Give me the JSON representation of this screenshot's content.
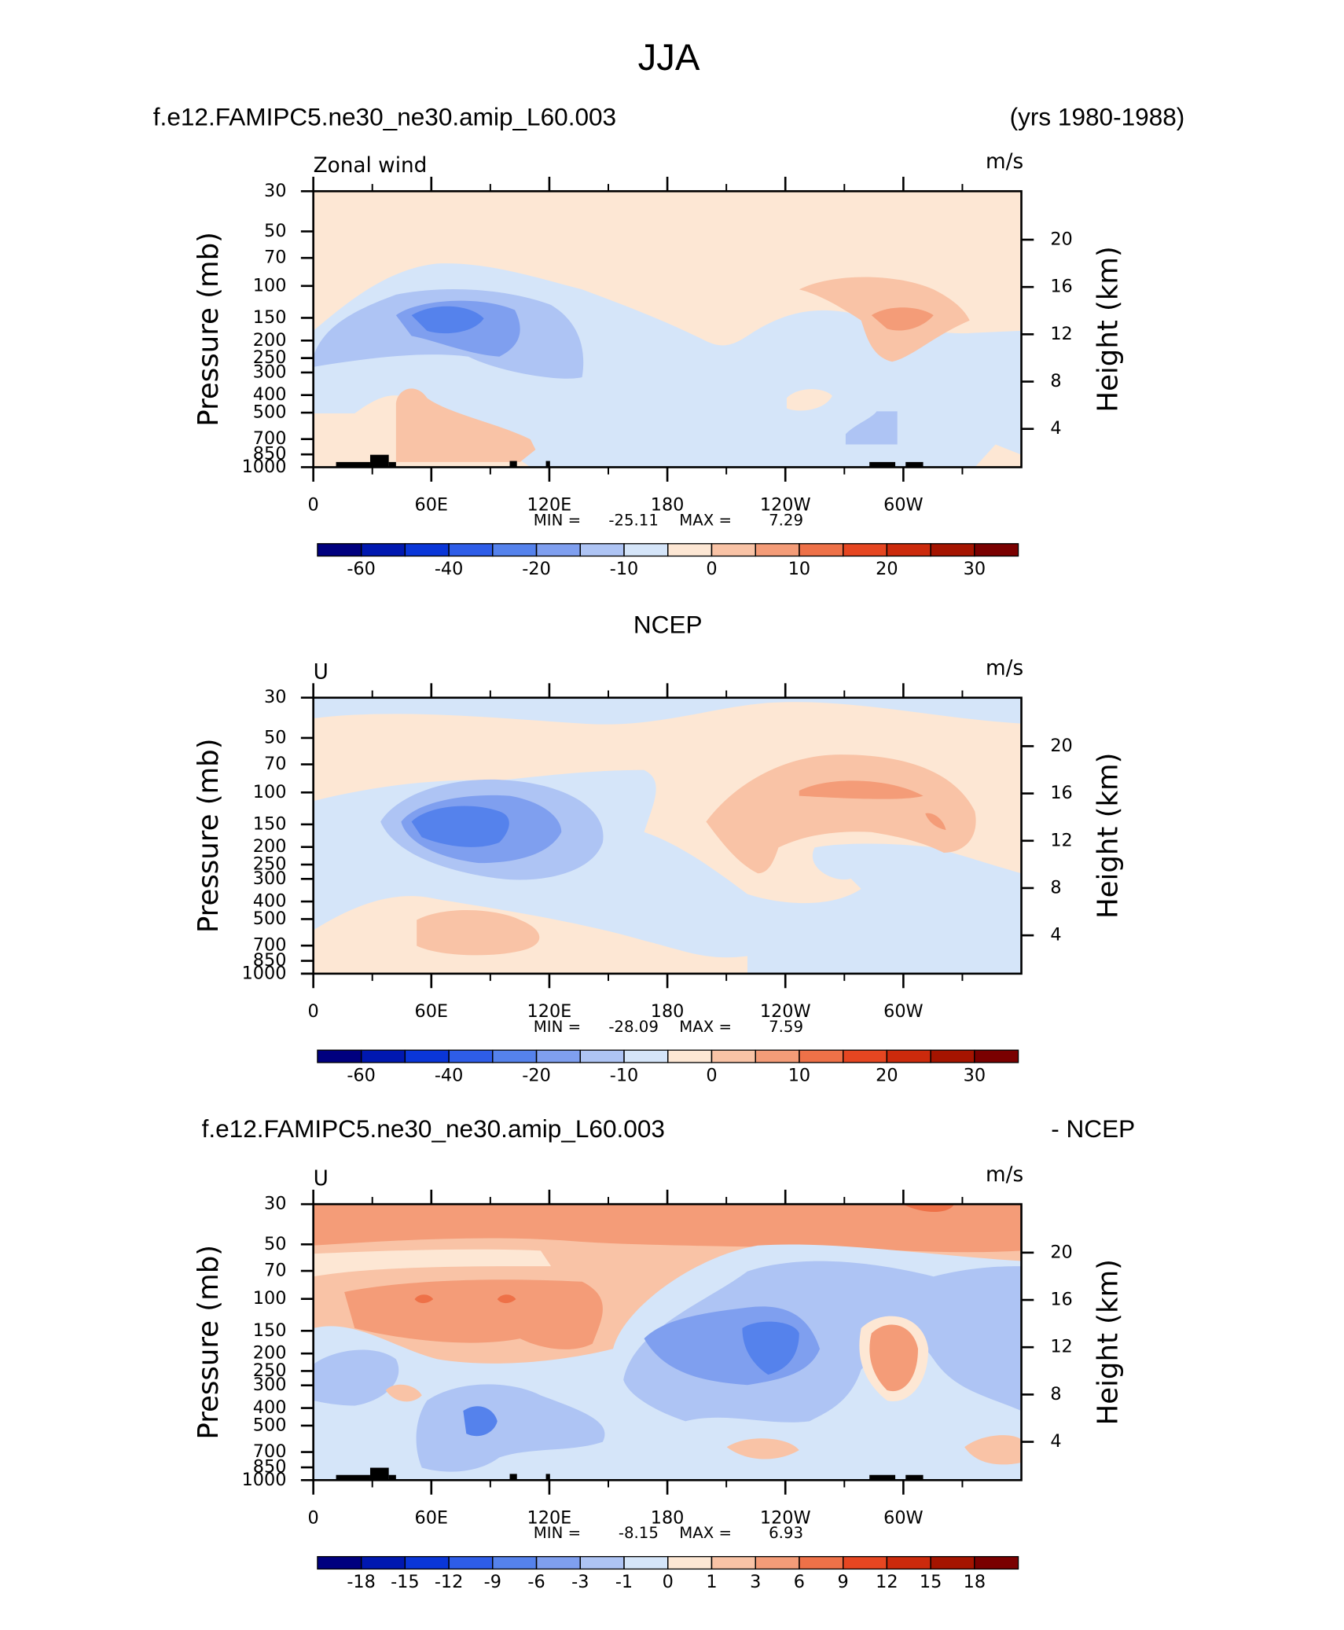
{
  "title": "JJA",
  "chart_data": [
    {
      "type": "contour",
      "left_title": "f.e12.FAMIPC5.ne30_ne30.amip_L60.003",
      "right_title": "(yrs 1980-1988)",
      "variable": "Zonal wind",
      "units": "m/s",
      "ylabel": "Pressure (mb)",
      "y2label": "Height (km)",
      "xlim": [
        0,
        360
      ],
      "xticks": [
        0,
        {
          "value": 60,
          "label": "60E"
        },
        {
          "value": 120,
          "label": "120E"
        },
        180,
        {
          "value": 240,
          "label": "120W"
        },
        {
          "value": 300,
          "label": "60W"
        }
      ],
      "ylim": [
        1000,
        30
      ],
      "log_y": true,
      "yticks": [
        30,
        50,
        70,
        100,
        150,
        200,
        250,
        300,
        400,
        500,
        700,
        850,
        1000
      ],
      "y2lim": [
        0.76,
        24.1
      ],
      "y2ticks": [
        4,
        8,
        12,
        16,
        20
      ],
      "min_label": "MIN =",
      "min": -25.11,
      "max_label": "MAX =",
      "max": 7.29,
      "colorbar": {
        "levels": [
          -60,
          -50,
          -40,
          -30,
          -20,
          -15,
          -10,
          -5,
          0,
          5,
          10,
          15,
          20,
          25,
          30
        ],
        "ticks": [
          -60,
          -40,
          -20,
          -10,
          0,
          10,
          20,
          30
        ],
        "colors": [
          "#00007f",
          "#0018b0",
          "#0a36d8",
          "#2e5de8",
          "#5582ec",
          "#7f9fef",
          "#aec4f4",
          "#d5e5f9",
          "#fde7d4",
          "#f9c3a6",
          "#f49c78",
          "#ee7148",
          "#e64621",
          "#cc2a0c",
          "#a51400",
          "#7a0000"
        ]
      }
    },
    {
      "type": "contour",
      "center_title": "NCEP",
      "variable": "U",
      "units": "m/s",
      "ylabel": "Pressure (mb)",
      "y2label": "Height (km)",
      "xlim": [
        0,
        360
      ],
      "xticks": [
        0,
        {
          "value": 60,
          "label": "60E"
        },
        {
          "value": 120,
          "label": "120E"
        },
        180,
        {
          "value": 240,
          "label": "120W"
        },
        {
          "value": 300,
          "label": "60W"
        }
      ],
      "ylim": [
        1000,
        30
      ],
      "log_y": true,
      "yticks": [
        30,
        50,
        70,
        100,
        150,
        200,
        250,
        300,
        400,
        500,
        700,
        850,
        1000
      ],
      "y2lim": [
        0.76,
        24.1
      ],
      "y2ticks": [
        4,
        8,
        12,
        16,
        20
      ],
      "min_label": "MIN =",
      "min": -28.09,
      "max_label": "MAX =",
      "max": 7.59,
      "colorbar": {
        "levels": [
          -60,
          -50,
          -40,
          -30,
          -20,
          -15,
          -10,
          -5,
          0,
          5,
          10,
          15,
          20,
          25,
          30
        ],
        "ticks": [
          -60,
          -40,
          -20,
          -10,
          0,
          10,
          20,
          30
        ],
        "colors": [
          "#00007f",
          "#0018b0",
          "#0a36d8",
          "#2e5de8",
          "#5582ec",
          "#7f9fef",
          "#aec4f4",
          "#d5e5f9",
          "#fde7d4",
          "#f9c3a6",
          "#f49c78",
          "#ee7148",
          "#e64621",
          "#cc2a0c",
          "#a51400",
          "#7a0000"
        ]
      }
    },
    {
      "type": "contour",
      "left_title": "f.e12.FAMIPC5.ne30_ne30.amip_L60.003",
      "right_title": "- NCEP",
      "variable": "U",
      "units": "m/s",
      "ylabel": "Pressure (mb)",
      "y2label": "Height (km)",
      "xlim": [
        0,
        360
      ],
      "xticks": [
        0,
        {
          "value": 60,
          "label": "60E"
        },
        {
          "value": 120,
          "label": "120E"
        },
        180,
        {
          "value": 240,
          "label": "120W"
        },
        {
          "value": 300,
          "label": "60W"
        }
      ],
      "ylim": [
        1000,
        30
      ],
      "log_y": true,
      "yticks": [
        30,
        50,
        70,
        100,
        150,
        200,
        250,
        300,
        400,
        500,
        700,
        850,
        1000
      ],
      "y2lim": [
        0.76,
        24.1
      ],
      "y2ticks": [
        4,
        8,
        12,
        16,
        20
      ],
      "min_label": "MIN =",
      "min": -8.15,
      "max_label": "MAX =",
      "max": 6.93,
      "colorbar": {
        "levels": [
          -18,
          -15,
          -12,
          -9,
          -6,
          -3,
          -1,
          0,
          1,
          3,
          6,
          9,
          12,
          15,
          18
        ],
        "ticks": [
          -18,
          -15,
          -12,
          -9,
          -6,
          -3,
          -1,
          0,
          1,
          3,
          6,
          9,
          12,
          15,
          18
        ],
        "colors": [
          "#00007f",
          "#0018b0",
          "#0a36d8",
          "#2e5de8",
          "#5582ec",
          "#7f9fef",
          "#aec4f4",
          "#d5e5f9",
          "#fde7d4",
          "#f9c3a6",
          "#f49c78",
          "#ee7148",
          "#e64621",
          "#cc2a0c",
          "#a51400",
          "#7a0000"
        ]
      }
    }
  ]
}
